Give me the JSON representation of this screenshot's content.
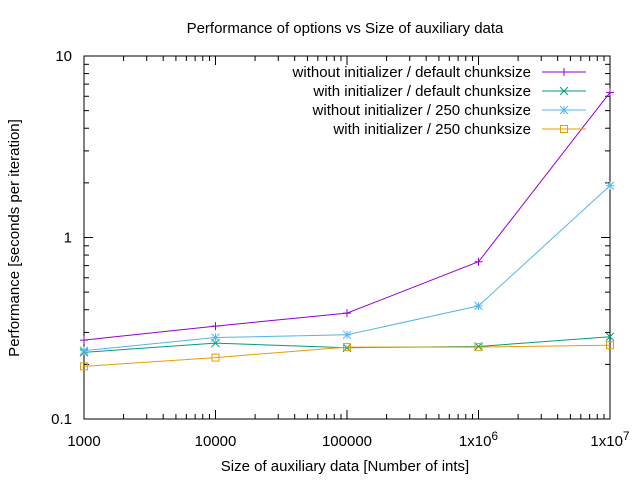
{
  "chart_data": {
    "type": "line",
    "title": "Performance of options vs Size of auxiliary data",
    "xlabel": "Size of auxiliary data [Number of ints]",
    "ylabel": "Performance [seconds per iteration]",
    "x_scale": "log",
    "y_scale": "log",
    "xlim": [
      1000,
      10000000
    ],
    "ylim": [
      0.1,
      10
    ],
    "x_ticks": [
      {
        "value": 1000,
        "label": "1000",
        "sup": ""
      },
      {
        "value": 10000,
        "label": "10000",
        "sup": ""
      },
      {
        "value": 100000,
        "label": "100000",
        "sup": ""
      },
      {
        "value": 1000000,
        "label": "1x10",
        "sup": "6"
      },
      {
        "value": 10000000,
        "label": "1x10",
        "sup": "7"
      }
    ],
    "y_ticks": [
      {
        "value": 0.1,
        "label": "0.1"
      },
      {
        "value": 1,
        "label": "1"
      },
      {
        "value": 10,
        "label": "10"
      }
    ],
    "grid": false,
    "legend_position": "top-right",
    "x": [
      1000,
      10000,
      100000,
      1000000,
      10000000
    ],
    "series": [
      {
        "name": "without initializer / default chunksize",
        "color": "#9400d3",
        "marker": "plus",
        "values": [
          0.272,
          0.325,
          0.383,
          0.735,
          6.3
        ]
      },
      {
        "name": "with initializer / default chunksize",
        "color": "#009e73",
        "marker": "cross",
        "values": [
          0.233,
          0.262,
          0.247,
          0.251,
          0.284
        ]
      },
      {
        "name": "without initializer / 250 chunksize",
        "color": "#56b4e9",
        "marker": "star",
        "values": [
          0.238,
          0.281,
          0.291,
          0.42,
          1.93
        ]
      },
      {
        "name": "with initializer / 250 chunksize",
        "color": "#e69f00",
        "marker": "square",
        "values": [
          0.195,
          0.218,
          0.249,
          0.249,
          0.255
        ]
      }
    ]
  }
}
